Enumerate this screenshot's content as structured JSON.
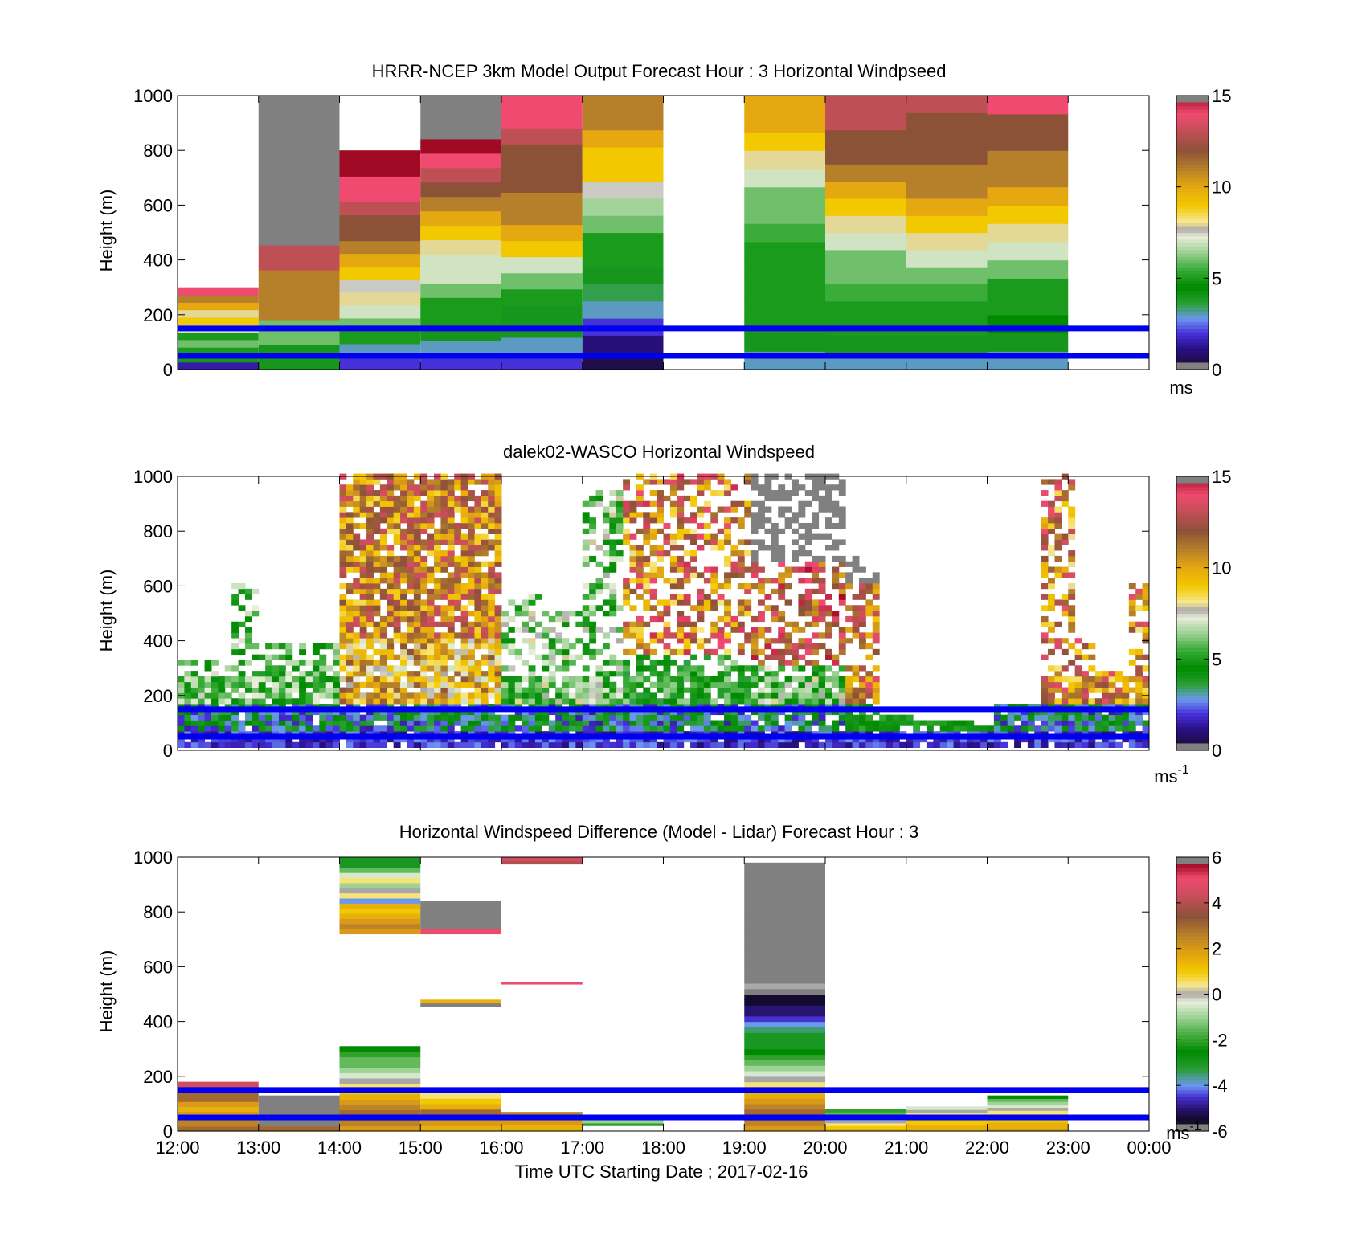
{
  "chart_data": [
    {
      "type": "heatmap",
      "title": "HRRR-NCEP 3km Model Output   Forecast Hour : 3 Horizontal Windpseed",
      "ylabel": "Height (m)",
      "ylim": [
        0,
        1000
      ],
      "yticks": [
        "0",
        "200",
        "400",
        "600",
        "800",
        "1000"
      ],
      "colorbar": {
        "range": [
          0,
          15
        ],
        "ticks": [
          "0",
          "5",
          "10",
          "15"
        ],
        "unit": "ms"
      },
      "reference_lines_m": [
        50,
        150
      ],
      "columns": [
        {
          "t": [
            12,
            13
          ],
          "top": 300,
          "cells": [
            1.5,
            4,
            5,
            6,
            5,
            7,
            9,
            8,
            10,
            11,
            14
          ]
        },
        {
          "t": [
            13,
            14
          ],
          "top": 1000,
          "cells": [
            4,
            6,
            11,
            11,
            13,
            15.5,
            15.5,
            15.5,
            15.5,
            15.5,
            15.5
          ]
        },
        {
          "t": [
            14,
            15
          ],
          "top": 800,
          "cells": [
            2,
            3,
            5,
            6,
            7,
            8,
            7.5,
            9,
            10,
            11,
            12,
            12,
            13,
            14,
            14,
            15,
            15
          ]
        },
        {
          "t": [
            15,
            16
          ],
          "top": 1000,
          "cells": [
            2,
            3,
            4,
            5,
            5,
            6,
            7,
            7,
            8,
            9,
            10,
            11,
            12,
            13,
            14,
            15,
            15.5,
            15.5,
            15.5
          ]
        },
        {
          "t": [
            16,
            17
          ],
          "top": 1000,
          "cells": [
            2,
            3,
            4,
            4,
            5,
            6,
            7,
            9,
            10,
            11,
            11,
            12,
            12,
            12,
            13,
            14,
            14
          ]
        },
        {
          "t": [
            17,
            18
          ],
          "top": 1000,
          "cells": [
            0.5,
            1,
            2,
            3,
            3.5,
            4,
            5,
            5,
            6,
            6.5,
            7.5,
            9,
            9,
            10,
            11,
            11
          ]
        },
        {
          "t": [
            19,
            20
          ],
          "top": 1000,
          "cells": [
            3,
            4,
            5,
            5,
            5,
            5,
            5,
            5.5,
            6,
            6,
            7,
            8,
            9,
            10,
            10
          ]
        },
        {
          "t": [
            20,
            21
          ],
          "top": 1000,
          "cells": [
            3,
            4,
            5,
            5,
            5.5,
            6,
            6,
            7,
            8,
            9,
            10,
            11,
            12,
            12,
            13,
            13
          ]
        },
        {
          "t": [
            21,
            22
          ],
          "top": 1000,
          "cells": [
            3,
            4,
            5,
            5,
            5.5,
            6,
            7,
            8,
            9,
            10,
            11,
            11,
            12,
            12,
            12,
            13
          ]
        },
        {
          "t": [
            22,
            23
          ],
          "top": 1000,
          "cells": [
            3,
            4,
            4.5,
            5,
            5,
            6,
            7,
            8,
            9,
            10,
            11,
            11,
            12,
            12,
            14
          ]
        }
      ]
    },
    {
      "type": "heatmap",
      "title": "dalek02-WASCO  Horizontal Windspeed",
      "ylabel": "Height (m)",
      "ylim": [
        0,
        1000
      ],
      "yticks": [
        "0",
        "200",
        "400",
        "600",
        "800",
        "1000"
      ],
      "colorbar": {
        "range": [
          0,
          15
        ],
        "ticks": [
          "0",
          "5",
          "10",
          "15"
        ],
        "unit": "ms",
        "unit_exponent": "-1"
      },
      "reference_lines_m": [
        50,
        150
      ]
    },
    {
      "type": "heatmap",
      "title": "Horizontal Windspeed Difference (Model - Lidar) Forecast Hour : 3",
      "xlabel": "Time UTC  Starting Date ; 2017-02-16",
      "ylabel": "Height (m)",
      "ylim": [
        0,
        1000
      ],
      "yticks": [
        "0",
        "200",
        "400",
        "600",
        "800",
        "1000"
      ],
      "xticks": [
        "12:00",
        "13:00",
        "14:00",
        "15:00",
        "16:00",
        "17:00",
        "18:00",
        "19:00",
        "20:00",
        "21:00",
        "22:00",
        "23:00",
        "00:00"
      ],
      "colorbar": {
        "range": [
          -6,
          6
        ],
        "ticks": [
          "-6",
          "-4",
          "-2",
          "0",
          "2",
          "4",
          "6"
        ],
        "unit": "ms",
        "unit_exponent": "-1"
      },
      "reference_lines_m": [
        50,
        150
      ],
      "blocks": [
        {
          "t": [
            12,
            13
          ],
          "h": [
            0,
            180
          ],
          "v": [
            3,
            2.5,
            2.5,
            2,
            1.5,
            2,
            3,
            3,
            3.5,
            4.5
          ]
        },
        {
          "t": [
            13,
            14
          ],
          "h": [
            0,
            130
          ],
          "v": [
            3,
            6.5,
            6.5,
            6.5,
            6.5,
            6.5,
            6.5
          ]
        },
        {
          "t": [
            14,
            15
          ],
          "h": [
            0,
            310
          ],
          "v": [
            2,
            2.5,
            3,
            3,
            2.5,
            2,
            1.5,
            1,
            0.5,
            0,
            -0.5,
            -1,
            -1.5,
            -1.5,
            -2,
            -2.5
          ]
        },
        {
          "t": [
            14,
            15
          ],
          "h": [
            720,
            1000
          ],
          "v": [
            2,
            2.5,
            2,
            1.5,
            1,
            1.5,
            -4,
            0.5,
            0,
            -1,
            0.5,
            -0.5,
            -1.5,
            -3,
            -3
          ]
        },
        {
          "t": [
            15,
            16
          ],
          "h": [
            0,
            140
          ],
          "v": [
            1.5,
            2,
            2,
            3,
            1.5,
            1,
            0.5
          ]
        },
        {
          "t": [
            15,
            16
          ],
          "h": [
            455,
            480
          ],
          "v": [
            6.5,
            1.5
          ]
        },
        {
          "t": [
            15,
            16
          ],
          "h": [
            720,
            840
          ],
          "v": [
            5,
            6.5,
            6.5,
            6.5,
            6.5,
            6.5
          ]
        },
        {
          "t": [
            16,
            17
          ],
          "h": [
            0,
            70
          ],
          "v": [
            1.5,
            2,
            2.5
          ]
        },
        {
          "t": [
            16,
            17
          ],
          "h": [
            975,
            1000
          ],
          "v": [
            4,
            4.5
          ]
        },
        {
          "t": [
            17,
            18
          ],
          "h": [
            20,
            40
          ],
          "v": [
            -2,
            -1
          ]
        },
        {
          "t": [
            19,
            20
          ],
          "h": [
            0,
            980
          ],
          "v": [
            2,
            2.5,
            3,
            3,
            2.5,
            2,
            1.5,
            1,
            0.5,
            0,
            -0.5,
            -1,
            -1.5,
            -2,
            -2.5,
            -3,
            -3,
            -3,
            -3.5,
            -4,
            -4.5,
            -5,
            -5,
            -5.5,
            -5.5,
            -6,
            0,
            -6,
            6.5,
            6.5,
            6.5,
            6.5,
            6.5,
            6.5,
            6.5,
            6.5,
            6.5,
            6.5,
            6.5,
            6.5,
            6.5,
            6.5,
            6.5,
            6.5,
            6.5,
            6.5,
            6.5,
            6.5,
            6.5
          ]
        },
        {
          "t": [
            20,
            21
          ],
          "h": [
            0,
            80
          ],
          "v": [
            1.5,
            1,
            0.5,
            0,
            -0.5,
            -1,
            -1.5,
            -2
          ]
        },
        {
          "t": [
            21,
            22
          ],
          "h": [
            0,
            90
          ],
          "v": [
            1.5,
            1.5,
            1,
            1,
            0.5,
            0.5,
            0,
            -0.5
          ]
        },
        {
          "t": [
            22,
            23
          ],
          "h": [
            0,
            130
          ],
          "v": [
            2,
            1.5,
            1.5,
            1,
            1,
            0.5,
            0.5,
            0,
            -0.5,
            -1,
            -1.5,
            -2.5
          ]
        }
      ]
    }
  ]
}
